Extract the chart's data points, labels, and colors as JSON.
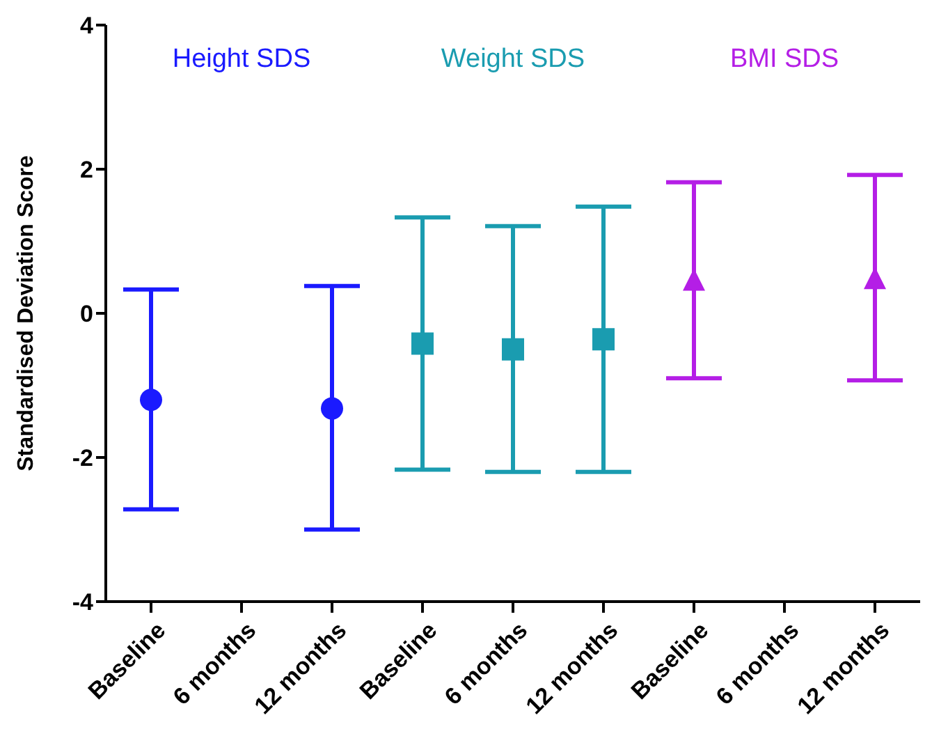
{
  "chart_data": {
    "type": "scatter",
    "ylabel": "Standardised Deviation Score",
    "categories": [
      "Baseline",
      "6 months",
      "12 months",
      "Baseline",
      "6 months",
      "12 months",
      "Baseline",
      "6 months",
      "12 months"
    ],
    "ylim": [
      -4,
      4
    ],
    "yticks": [
      -4,
      -2,
      0,
      2,
      4
    ],
    "grid": false,
    "legend": false,
    "series": [
      {
        "name": "Height SDS",
        "color": "#1a1aff",
        "marker": "circle",
        "values": [
          -1.2,
          null,
          -1.32,
          null,
          null,
          null,
          null,
          null,
          null
        ],
        "errors": [
          [
            -2.72,
            0.33
          ],
          null,
          [
            -3.0,
            0.38
          ],
          null,
          null,
          null,
          null,
          null,
          null
        ]
      },
      {
        "name": "Weight SDS",
        "color": "#1a9cb0",
        "marker": "square",
        "values": [
          null,
          null,
          null,
          -0.42,
          -0.5,
          -0.36,
          null,
          null,
          null
        ],
        "errors": [
          null,
          null,
          null,
          [
            -2.17,
            1.33
          ],
          [
            -2.2,
            1.21
          ],
          [
            -2.2,
            1.48
          ],
          null,
          null,
          null
        ]
      },
      {
        "name": "BMI SDS",
        "color": "#b41ee6",
        "marker": "triangle",
        "values": [
          null,
          null,
          null,
          null,
          null,
          null,
          0.45,
          null,
          0.47
        ],
        "errors": [
          null,
          null,
          null,
          null,
          null,
          null,
          [
            -0.9,
            1.82
          ],
          null,
          [
            -0.93,
            1.92
          ]
        ]
      }
    ]
  }
}
